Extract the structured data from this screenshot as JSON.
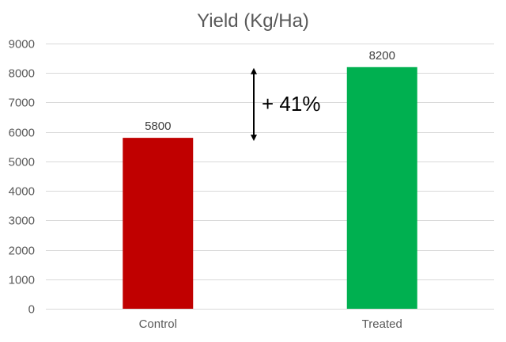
{
  "chart_data": {
    "type": "bar",
    "title": "Yield (Kg/Ha)",
    "xlabel": "",
    "ylabel": "",
    "categories": [
      "Control",
      "Treated"
    ],
    "values": [
      5800,
      8200
    ],
    "colors": [
      "#c00000",
      "#00b050"
    ],
    "ylim": [
      0,
      9000
    ],
    "yticks": [
      0,
      1000,
      2000,
      3000,
      4000,
      5000,
      6000,
      7000,
      8000,
      9000
    ],
    "grid": true,
    "legend": "none",
    "data_labels": [
      "5800",
      "8200"
    ],
    "annotation": {
      "text": "+ 41%",
      "from_value": 5800,
      "to_value": 8200
    }
  }
}
